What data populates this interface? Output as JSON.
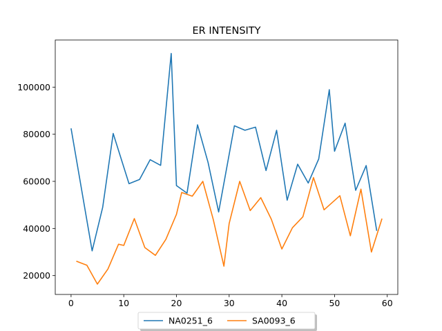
{
  "chart_data": {
    "type": "line",
    "title": "ER INTENSITY",
    "xlabel": "",
    "ylabel": "",
    "xlim": [
      -3,
      62
    ],
    "ylim": [
      12000,
      120000
    ],
    "xticks": [
      0,
      10,
      20,
      30,
      40,
      50,
      60
    ],
    "yticks": [
      20000,
      40000,
      60000,
      80000,
      100000
    ],
    "grid": false,
    "legend_position": "bottom-center",
    "series": [
      {
        "name": "NA0251_6",
        "color": "#1f77b4",
        "x": [
          0,
          4,
          6,
          8,
          11,
          13,
          15,
          17,
          19,
          20,
          22,
          24,
          26,
          28,
          31,
          33,
          35,
          37,
          39,
          41,
          43,
          45,
          47,
          49,
          50,
          52,
          54,
          56,
          58
        ],
        "y": [
          82500,
          30500,
          49000,
          80300,
          59000,
          60800,
          69200,
          66800,
          114300,
          58200,
          55000,
          84000,
          68000,
          47000,
          83600,
          81700,
          83000,
          64600,
          81700,
          52000,
          67300,
          59300,
          69500,
          98900,
          72800,
          84700,
          56200,
          66700,
          39000
        ]
      },
      {
        "name": "SA0093_6",
        "color": "#ff7f0e",
        "x": [
          1,
          3,
          5,
          7,
          9,
          10,
          12,
          14,
          16,
          18,
          20,
          21,
          23,
          25,
          27,
          29,
          30,
          32,
          34,
          36,
          38,
          40,
          42,
          44,
          46,
          48,
          51,
          53,
          55,
          57,
          59
        ],
        "y": [
          26100,
          24400,
          16400,
          22800,
          33300,
          32800,
          44200,
          31900,
          28600,
          35400,
          46000,
          55300,
          53700,
          60000,
          43700,
          24000,
          42100,
          60000,
          47600,
          53100,
          43900,
          31300,
          40300,
          45000,
          61600,
          47900,
          53900,
          36900,
          56700,
          30000,
          44200
        ]
      }
    ]
  }
}
